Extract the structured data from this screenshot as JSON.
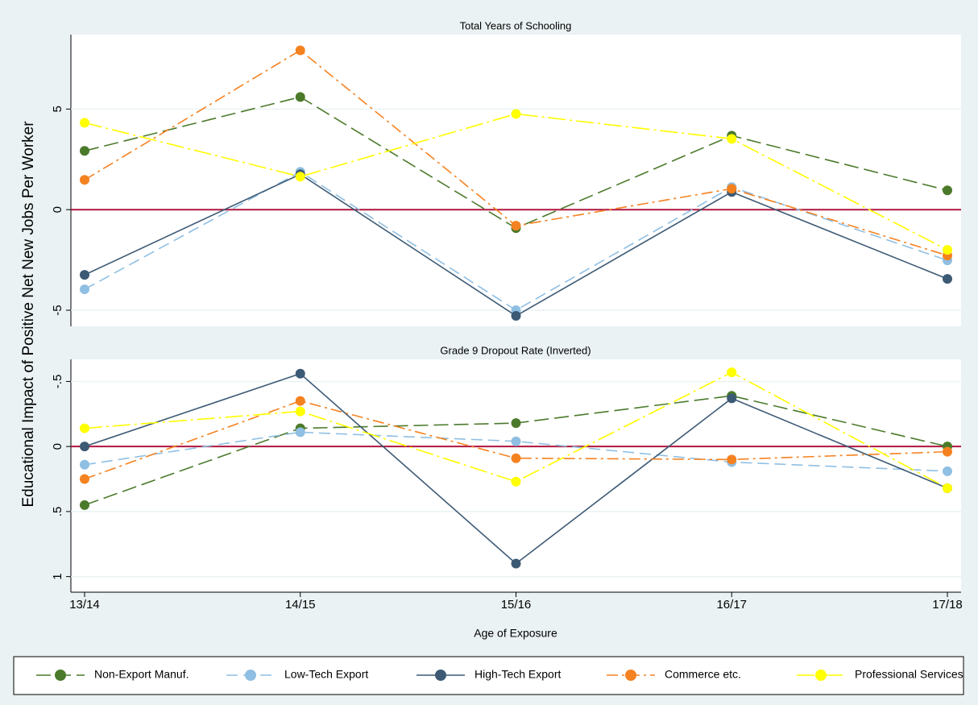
{
  "chart_data": [
    {
      "type": "line",
      "title": "Total Years of Schooling",
      "y_label": "Educational Impact of Positive Net New Jobs Per Worker",
      "ylim": [
        -5.8,
        8.7
      ],
      "yticks": [
        -5,
        0,
        5
      ],
      "grid": true,
      "refline": 0,
      "refline_color": "#b0163f",
      "series": [
        {
          "name": "Non-Export Manuf.",
          "color": "#4b7a2b",
          "values": [
            2.92,
            5.6,
            -0.92,
            3.68,
            0.96
          ]
        },
        {
          "name": "Low-Tech Export",
          "color": "#8fbfe3",
          "values": [
            -3.96,
            1.88,
            -5.0,
            1.12,
            -2.52
          ]
        },
        {
          "name": "High-Tech Export",
          "color": "#3d5a75",
          "values": [
            -3.24,
            1.76,
            -5.28,
            0.88,
            -3.44
          ]
        },
        {
          "name": "Commerce etc.",
          "color": "#f58220",
          "values": [
            1.48,
            7.92,
            -0.8,
            1.04,
            -2.28
          ]
        },
        {
          "name": "Professional Services",
          "color": "#ffff00",
          "values": [
            4.32,
            1.64,
            4.76,
            3.52,
            -2.0
          ]
        }
      ]
    },
    {
      "type": "line",
      "title": "Grade 9 Dropout Rate (Inverted)",
      "x_label": "Age of Exposure",
      "categories": [
        "13/14",
        "14/15",
        "15/16",
        "16/17",
        "17/18"
      ],
      "ylim": [
        -0.67,
        1.12
      ],
      "y_inverted": true,
      "yticks": [
        {
          "value": -0.5,
          "label": "-.5"
        },
        0,
        {
          "value": 0.5,
          "label": ".5"
        },
        1
      ],
      "grid": true,
      "refline": 0,
      "refline_color": "#b0163f",
      "series": [
        {
          "color": "#4b7a2b",
          "values": [
            0.45,
            -0.14,
            -0.18,
            -0.39,
            0.0
          ]
        },
        {
          "color": "#8fbfe3",
          "values": [
            0.14,
            -0.11,
            -0.04,
            0.12,
            0.19
          ]
        },
        {
          "color": "#3d5a75",
          "values": [
            0.0,
            -0.56,
            0.9,
            -0.37,
            0.32
          ]
        },
        {
          "color": "#f58220",
          "values": [
            0.25,
            -0.35,
            0.09,
            0.1,
            0.04
          ]
        },
        {
          "color": "#ffff00",
          "values": [
            -0.14,
            -0.27,
            0.27,
            -0.57,
            0.32
          ]
        }
      ]
    }
  ]
}
